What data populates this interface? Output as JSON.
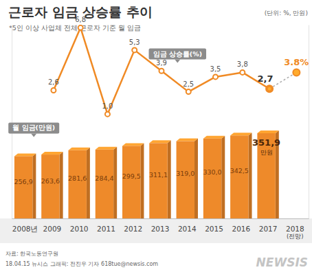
{
  "chart_data": {
    "type": "bar",
    "title": "근로자 임금 상승률 추이",
    "subtitle": "*5인 이상 사업체 전체 근로자 기준 월 임금",
    "unit": "(단위: %, 만원)",
    "source": "자료: 한국노동연구원",
    "credit": "18.04.15  뉴시스 그래픽: 전진우 기자 618tue@newsis.com",
    "watermark": "NEWSIS",
    "categories": [
      "2008년",
      "2009",
      "2010",
      "2011",
      "2012",
      "2013",
      "2014",
      "2015",
      "2016",
      "2017",
      "2018 (전망)"
    ],
    "ylim": [
      0,
      800
    ],
    "yticks": [],
    "y2lim": [
      -6,
      7
    ],
    "y2ticks": [],
    "tick_labels": "x",
    "grid": false,
    "data_labels": true,
    "annotations": [
      {
        "text": "만원"
      }
    ],
    "series": [
      {
        "name": "월 임금(만원)",
        "type": "bar",
        "color": "#ee8a2a",
        "values": [
          256.9,
          263.6,
          281.6,
          284.4,
          299.5,
          311.1,
          319.0,
          330.0,
          342.5,
          351.9,
          null
        ],
        "value_labels": [
          "256,9",
          "263,6",
          "281,6",
          "284,4",
          "299,5",
          "311,1",
          "319,0",
          "330,0",
          "342,5",
          "351,9",
          null
        ]
      },
      {
        "name": "임금 상승률(%)",
        "type": "line",
        "axis": "y2",
        "color": "#f08a24",
        "marker": "circle",
        "line_style": "solid",
        "values": [
          null,
          2.6,
          6.8,
          1.0,
          5.3,
          3.9,
          2.5,
          3.5,
          3.8,
          2.7,
          null
        ],
        "value_labels": [
          null,
          "2,6",
          "6,8",
          "1,0",
          "5,3",
          "3,9",
          "2,5",
          "3,5",
          "3,8",
          "2,7",
          null
        ]
      },
      {
        "type": "line",
        "axis": "y2",
        "color": "#f08a24",
        "marker": "circle",
        "line_style": "dashed",
        "values": [
          null,
          null,
          null,
          null,
          null,
          null,
          null,
          null,
          null,
          2.7,
          3.8
        ],
        "value_labels": [
          null,
          null,
          null,
          null,
          null,
          null,
          null,
          null,
          null,
          null,
          "3.8%"
        ]
      }
    ]
  }
}
